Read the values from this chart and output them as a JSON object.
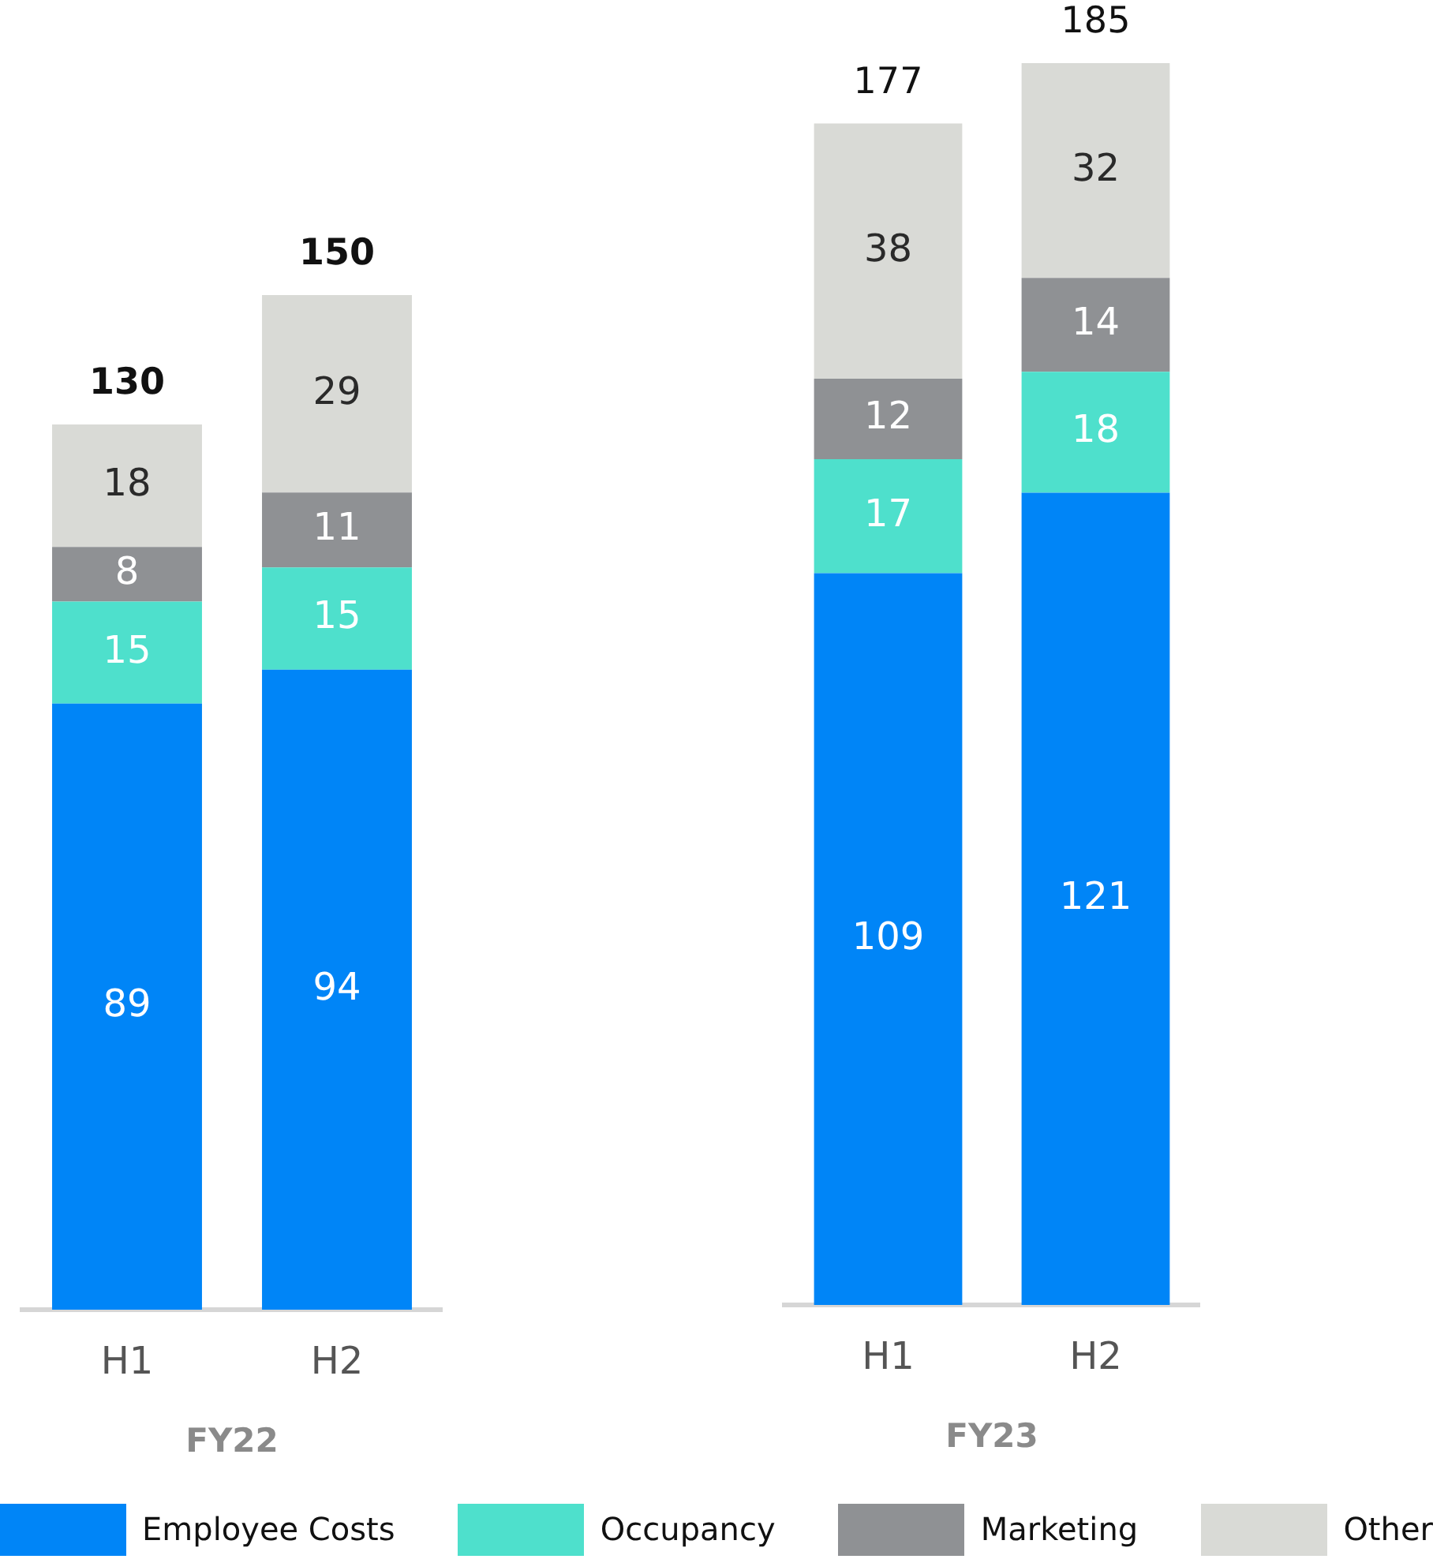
{
  "chart_data": [
    {
      "type": "bar",
      "categories": [
        "H1",
        "H2"
      ],
      "xlabel": "FY22",
      "stacked": true,
      "tick_labels": "x",
      "data_labels": true,
      "totals": [
        "130",
        "150"
      ],
      "legend": "bottom",
      "series": [
        {
          "name": "Employee Costs",
          "color": "#0085f7",
          "values": [
            89,
            94
          ]
        },
        {
          "name": "Occupancy",
          "color": "#4ee0cc",
          "values": [
            15,
            15
          ]
        },
        {
          "name": "Marketing",
          "color": "#8f9194",
          "values": [
            8,
            11
          ]
        },
        {
          "name": "Other",
          "color": "#d9dad6",
          "values": [
            18,
            29
          ]
        }
      ]
    },
    {
      "type": "bar",
      "categories": [
        "H1",
        "H2"
      ],
      "xlabel": "FY23",
      "stacked": true,
      "tick_labels": "x",
      "data_labels": true,
      "totals": [
        "177",
        "185"
      ],
      "series": [
        {
          "color": "#0085f7",
          "values": [
            109,
            121
          ]
        },
        {
          "color": "#4ee0cc",
          "values": [
            17,
            18
          ]
        },
        {
          "color": "#8f9194",
          "values": [
            12,
            14
          ]
        },
        {
          "color": "#d9dad6",
          "values": [
            38,
            32
          ]
        }
      ]
    }
  ]
}
